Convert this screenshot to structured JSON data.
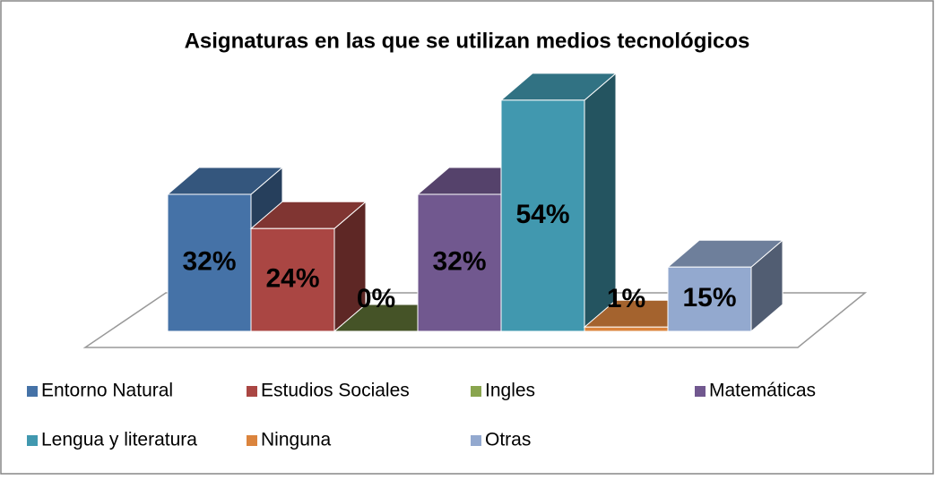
{
  "chart_data": {
    "type": "bar3d",
    "title": "Asignaturas en las que se utilizan medios tecnológicos",
    "categories": [
      "Entorno Natural",
      "Estudios Sociales",
      "Ingles",
      "Matemáticas",
      "Lengua y literatura",
      "Ninguna",
      "Otras"
    ],
    "values": [
      32,
      24,
      0,
      32,
      54,
      1,
      15
    ],
    "value_labels": [
      "32%",
      "24%",
      "0%",
      "32%",
      "54%",
      "1%",
      "15%"
    ],
    "colors": [
      "#4572a7",
      "#aa4643",
      "#89a54e",
      "#71588f",
      "#4198af",
      "#db843d",
      "#93a9cf"
    ],
    "legend": "bottom"
  }
}
